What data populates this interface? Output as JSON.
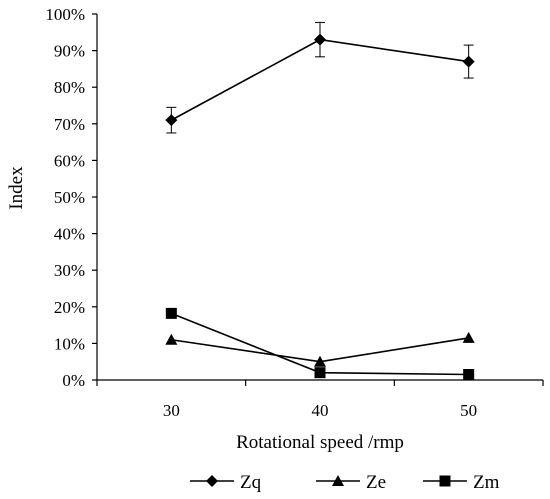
{
  "chart_data": {
    "type": "line",
    "title": "",
    "xlabel": "Rotational speed /rmp",
    "ylabel": "Index",
    "categories": [
      "30",
      "40",
      "50"
    ],
    "ylim": [
      0,
      1
    ],
    "yticks": [
      "0%",
      "10%",
      "20%",
      "30%",
      "40%",
      "50%",
      "60%",
      "70%",
      "80%",
      "90%",
      "100%"
    ],
    "grid": false,
    "legend_position": "bottom",
    "series": [
      {
        "name": "Zq",
        "marker": "diamond",
        "values": [
          0.71,
          0.93,
          0.87
        ],
        "error": [
          0.035,
          0.047,
          0.045
        ],
        "color": "#000000"
      },
      {
        "name": "Ze",
        "marker": "triangle",
        "values": [
          0.11,
          0.05,
          0.115
        ],
        "color": "#000000"
      },
      {
        "name": "Zm",
        "marker": "square",
        "values": [
          0.182,
          0.02,
          0.015
        ],
        "color": "#000000"
      }
    ]
  }
}
